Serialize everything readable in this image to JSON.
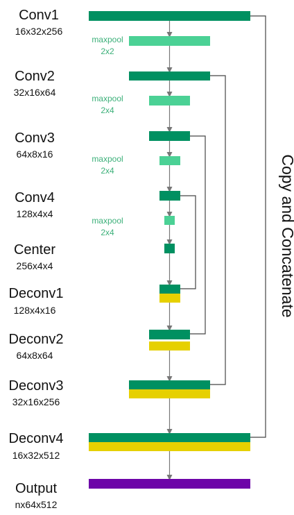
{
  "colors": {
    "conv": "#009061",
    "pool": "#4bd195",
    "concat": "#e6d000",
    "output": "#6d04a8",
    "arrow": "#777777",
    "skip_line": "#444444",
    "pool_text": "#3db07a"
  },
  "layers": [
    {
      "id": "conv1",
      "name": "Conv1",
      "dims": "16x32x256"
    },
    {
      "id": "conv2",
      "name": "Conv2",
      "dims": "32x16x64"
    },
    {
      "id": "conv3",
      "name": "Conv3",
      "dims": "64x8x16"
    },
    {
      "id": "conv4",
      "name": "Conv4",
      "dims": "128x4x4"
    },
    {
      "id": "center",
      "name": "Center",
      "dims": "256x4x4"
    },
    {
      "id": "deconv1",
      "name": "Deconv1",
      "dims": "128x4x16"
    },
    {
      "id": "deconv2",
      "name": "Deconv2",
      "dims": "64x8x64"
    },
    {
      "id": "deconv3",
      "name": "Deconv3",
      "dims": "32x16x256"
    },
    {
      "id": "deconv4",
      "name": "Deconv4",
      "dims": "16x32x512"
    },
    {
      "id": "output",
      "name": "Output",
      "dims": "nx64x512"
    }
  ],
  "pools": [
    {
      "label": "maxpool",
      "size": "2x2"
    },
    {
      "label": "maxpool",
      "size": "2x4"
    },
    {
      "label": "maxpool",
      "size": "2x4"
    },
    {
      "label": "maxpool",
      "size": "2x4"
    }
  ],
  "copy_label": "Copy and Concatenate"
}
